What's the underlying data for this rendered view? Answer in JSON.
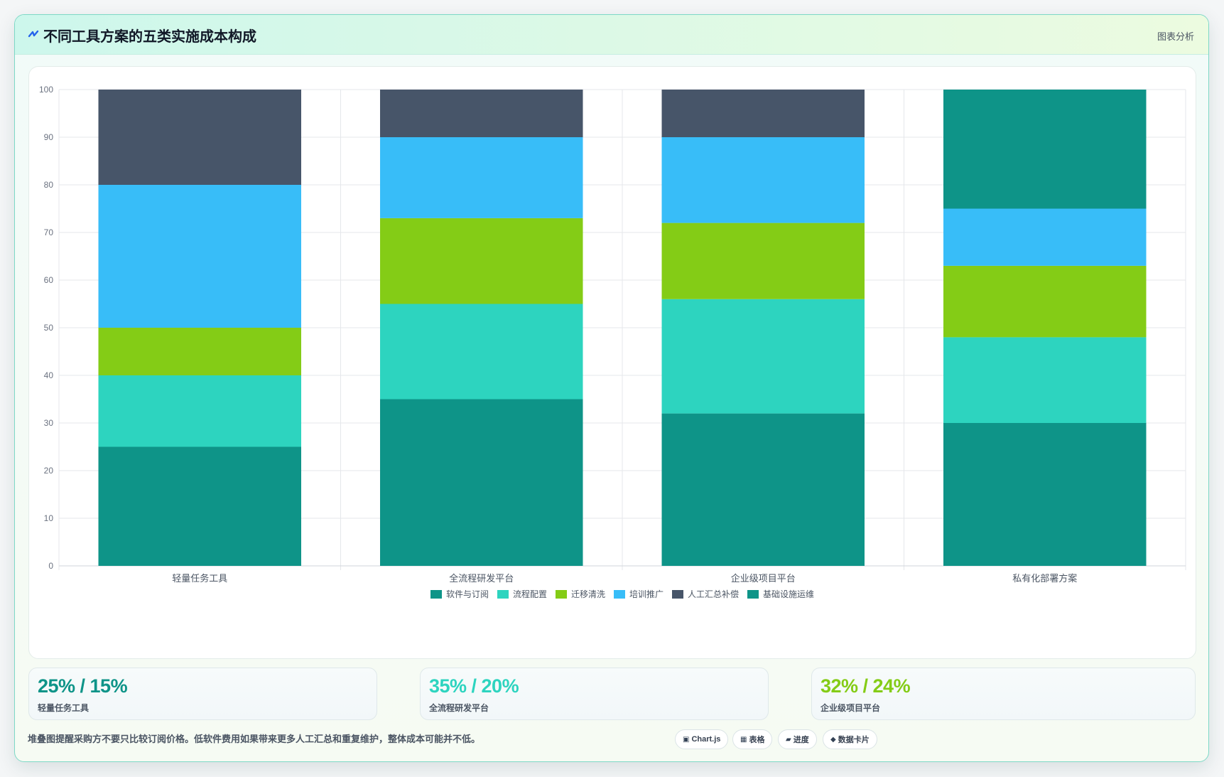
{
  "header": {
    "title": "不同工具方案的五类实施成本构成",
    "badge": "图表分析",
    "logo_icon": "zigzag-logo-icon"
  },
  "chart_data": {
    "type": "bar",
    "stacked": true,
    "categories": [
      "轻量任务工具",
      "全流程研发平台",
      "企业级项目平台",
      "私有化部署方案"
    ],
    "series": [
      {
        "name": "软件与订阅",
        "color": "#0e9488",
        "values": [
          25,
          35,
          32,
          30
        ]
      },
      {
        "name": "流程配置",
        "color": "#2dd4bf",
        "values": [
          15,
          20,
          24,
          18
        ]
      },
      {
        "name": "迁移清洗",
        "color": "#84cc16",
        "values": [
          10,
          18,
          16,
          15
        ]
      },
      {
        "name": "培训推广",
        "color": "#38bdf8",
        "values": [
          30,
          17,
          18,
          12
        ]
      },
      {
        "name": "人工汇总补偿",
        "color": "#475569",
        "values": [
          20,
          10,
          10,
          0
        ]
      },
      {
        "name": "基础设施运维",
        "color": "#0e9488",
        "values": [
          0,
          0,
          0,
          25
        ]
      }
    ],
    "ylim": [
      0,
      100
    ],
    "yticks": [
      0,
      10,
      20,
      30,
      40,
      50,
      60,
      70,
      80,
      90,
      100
    ],
    "grid": true,
    "legend": "bottom-center",
    "xlabel": "",
    "ylabel": ""
  },
  "kpis": [
    {
      "value": "25% / 15%",
      "label": "轻量任务工具",
      "color": "#0e9488"
    },
    {
      "value": "35% / 20%",
      "label": "全流程研发平台",
      "color": "#2dd4bf"
    },
    {
      "value": "32% / 24%",
      "label": "企业级项目平台",
      "color": "#84cc16"
    }
  ],
  "footer": {
    "note": "堆叠图提醒采购方不要只比较订阅价格。低软件费用如果带来更多人工汇总和重复维护，整体成本可能并不低。",
    "chips": [
      {
        "icon": "▣",
        "icon_name": "chart-icon",
        "label": "Chart.js"
      },
      {
        "icon": "▦",
        "icon_name": "table-icon",
        "label": "表格"
      },
      {
        "icon": "▰",
        "icon_name": "progress-icon",
        "label": "进度"
      },
      {
        "icon": "◆",
        "icon_name": "diamond-icon",
        "label": "数据卡片"
      }
    ]
  }
}
